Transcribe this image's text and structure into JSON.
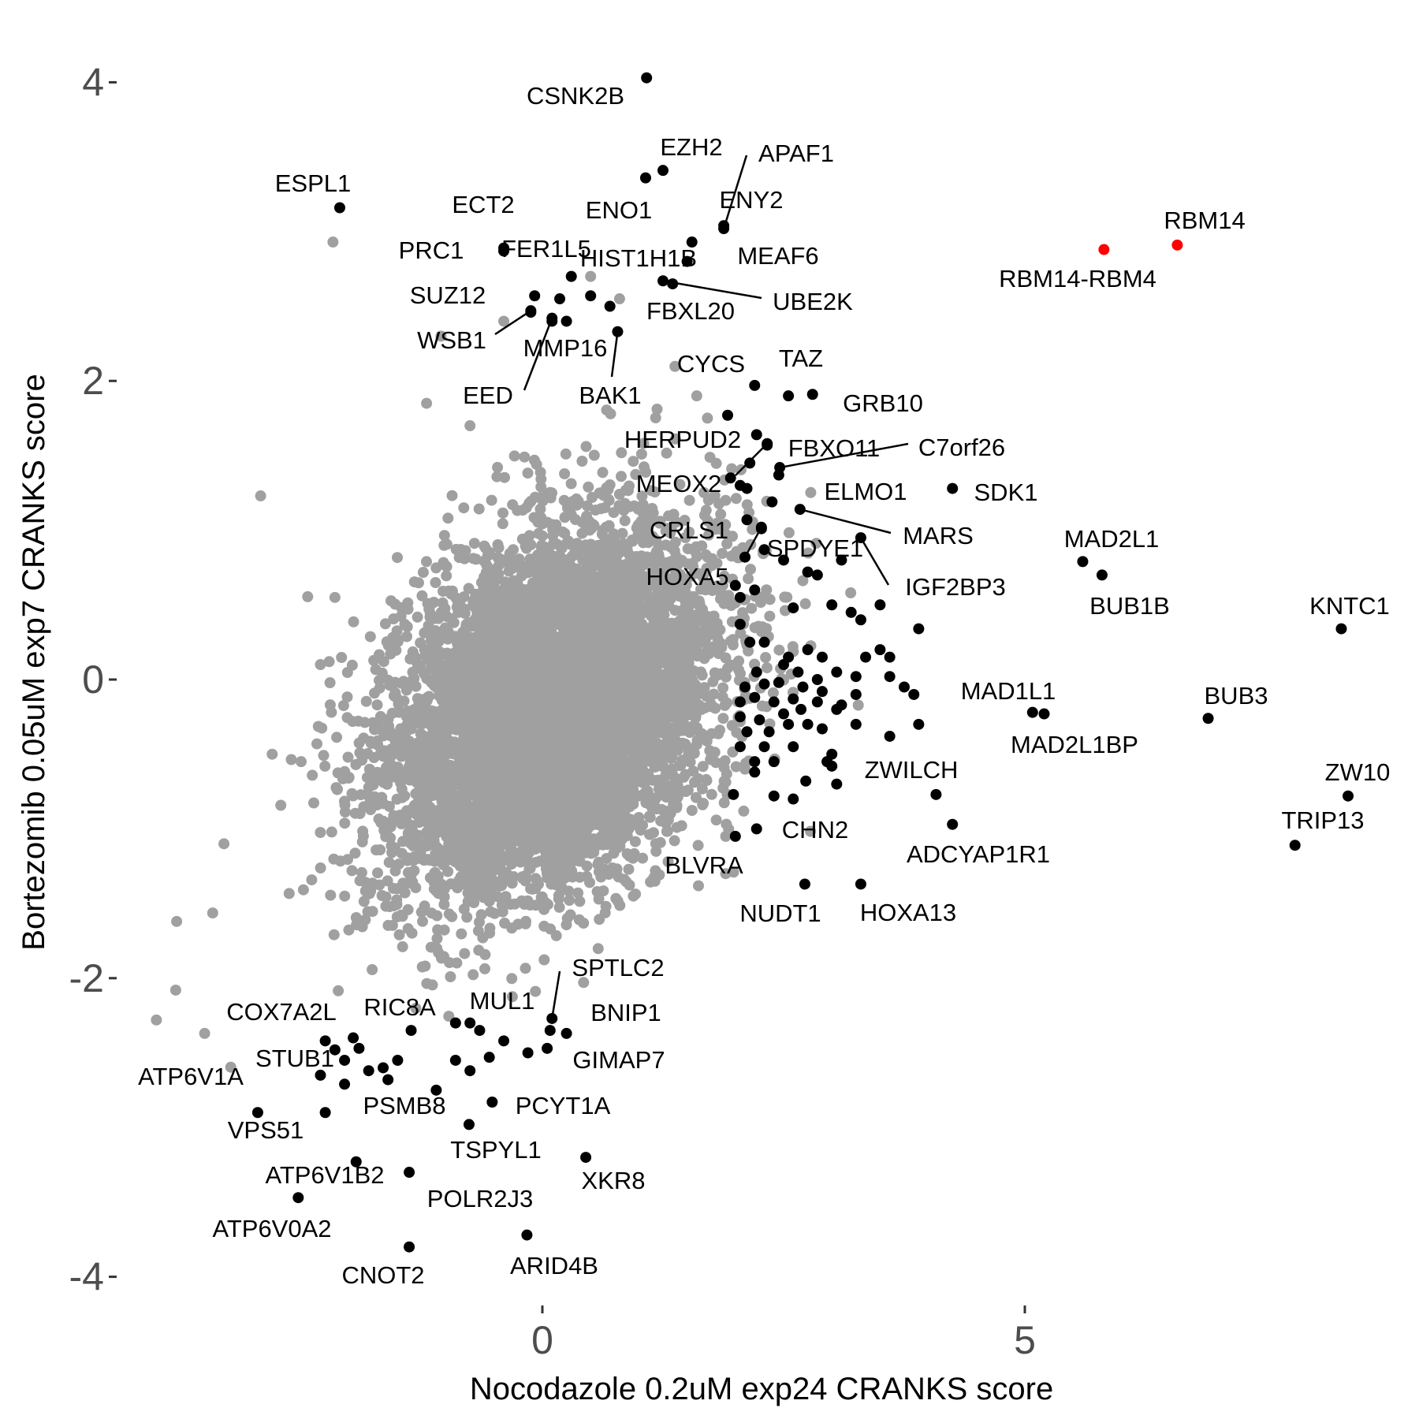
{
  "chart_data": {
    "type": "scatter",
    "title": "",
    "xlabel": "Nocodazole 0.2uM exp24 CRANKS score",
    "ylabel": "Bortezomib 0.05uM exp7 CRANKS score",
    "xlim": [
      -4.5,
      8.8
    ],
    "ylim": [
      -4.2,
      4.5
    ],
    "x_ticks": [
      0,
      5
    ],
    "y_ticks": [
      -4,
      -2,
      0,
      2,
      4
    ],
    "grid": false,
    "legend": "none",
    "colors": {
      "background": "#ffffff",
      "neutral": "#a0a0a0",
      "labeled": "#000000",
      "highlight": "#ff0000"
    },
    "background_cloud": {
      "color": "#a0a0a0",
      "center": [
        0.1,
        -0.2
      ],
      "sd": [
        0.85,
        0.6
      ],
      "correlation": 0.35,
      "count": 7000,
      "outliers": [
        [
          -2.17,
          2.93
        ],
        [
          -2.92,
          1.23
        ],
        [
          -3.79,
          -1.62
        ],
        [
          -3.8,
          -2.08
        ],
        [
          -4.0,
          -2.28
        ],
        [
          -3.5,
          -2.37
        ],
        [
          -2.8,
          -0.5
        ],
        [
          -3.3,
          -1.1
        ],
        [
          -1.2,
          1.85
        ],
        [
          -0.75,
          1.7
        ],
        [
          -1.05,
          2.3
        ],
        [
          -0.4,
          2.4
        ],
        [
          0.5,
          2.7
        ],
        [
          0.8,
          2.55
        ],
        [
          1.6,
          1.9
        ],
        [
          1.9,
          1.2
        ],
        [
          2.0,
          0.1
        ],
        [
          2.1,
          -0.6
        ],
        [
          1.9,
          -1.3
        ],
        [
          1.9,
          -1.05
        ],
        [
          -2.15,
          0.55
        ],
        [
          -2.3,
          0.1
        ],
        [
          -2.5,
          -0.55
        ]
      ]
    },
    "labeled_points": [
      {
        "label": "CSNK2B",
        "x": 1.08,
        "y": 4.03,
        "color": "#000000"
      },
      {
        "label": "EZH2",
        "x": 1.25,
        "y": 3.41,
        "color": "#000000"
      },
      {
        "label": "APAF1",
        "x": 1.88,
        "y": 3.02,
        "color": "#000000"
      },
      {
        "label": "ENY2",
        "x": 1.88,
        "y": 3.04,
        "color": "#000000"
      },
      {
        "label": "ENO1",
        "x": 1.07,
        "y": 3.36,
        "color": "#000000"
      },
      {
        "label": "ESPL1",
        "x": -2.1,
        "y": 3.16,
        "color": "#000000"
      },
      {
        "label": "ECT2",
        "x": -0.4,
        "y": 2.89,
        "color": "#000000"
      },
      {
        "label": "MEAF6",
        "x": 1.55,
        "y": 2.93,
        "color": "#000000"
      },
      {
        "label": "PRC1",
        "x": -0.4,
        "y": 2.87,
        "color": "#000000"
      },
      {
        "label": "FER1L5",
        "x": 0.3,
        "y": 2.7,
        "color": "#000000"
      },
      {
        "label": "HIST1H1B",
        "x": 0.5,
        "y": 2.57,
        "color": "#000000"
      },
      {
        "label": "UBE2K",
        "x": 1.25,
        "y": 2.67,
        "color": "#000000"
      },
      {
        "label": "FBXL20",
        "x": 0.7,
        "y": 2.5,
        "color": "#000000"
      },
      {
        "label": "SUZ12",
        "x": -0.12,
        "y": 2.46,
        "color": "#000000"
      },
      {
        "label": "WSB1",
        "x": -0.12,
        "y": 2.47,
        "color": "#000000"
      },
      {
        "label": "MMP16",
        "x": 0.1,
        "y": 2.4,
        "color": "#000000"
      },
      {
        "label": "EED",
        "x": 0.1,
        "y": 2.42,
        "color": "#000000"
      },
      {
        "label": "BAK1",
        "x": 0.78,
        "y": 2.33,
        "color": "#000000"
      },
      {
        "label": "RBM14",
        "x": 6.58,
        "y": 2.91,
        "color": "#ff0000"
      },
      {
        "label": "RBM14-RBM4",
        "x": 5.82,
        "y": 2.88,
        "color": "#ff0000"
      },
      {
        "label": "CYCS",
        "x": 2.2,
        "y": 1.97,
        "color": "#000000"
      },
      {
        "label": "TAZ",
        "x": 2.55,
        "y": 1.9,
        "color": "#000000"
      },
      {
        "label": "GRB10",
        "x": 2.8,
        "y": 1.91,
        "color": "#000000"
      },
      {
        "label": "HERPUD2",
        "x": 2.22,
        "y": 1.64,
        "color": "#000000"
      },
      {
        "label": "FBXO11",
        "x": 2.33,
        "y": 1.57,
        "color": "#000000"
      },
      {
        "label": "C7orf26",
        "x": 2.46,
        "y": 1.42,
        "color": "#000000"
      },
      {
        "label": "MEOX2",
        "x": 2.33,
        "y": 1.58,
        "color": "#000000"
      },
      {
        "label": "SDK1",
        "x": 4.25,
        "y": 1.28,
        "color": "#000000"
      },
      {
        "label": "ELMO1",
        "x": 2.38,
        "y": 1.19,
        "color": "#000000"
      },
      {
        "label": "MARS",
        "x": 2.67,
        "y": 1.14,
        "color": "#000000"
      },
      {
        "label": "CRLS1",
        "x": 2.12,
        "y": 1.28,
        "color": "#000000"
      },
      {
        "label": "SPDYE1",
        "x": 2.27,
        "y": 1.01,
        "color": "#000000"
      },
      {
        "label": "HOXA5",
        "x": 2.27,
        "y": 1.02,
        "color": "#000000"
      },
      {
        "label": "IGF2BP3",
        "x": 3.3,
        "y": 0.95,
        "color": "#000000"
      },
      {
        "label": "MAD2L1",
        "x": 5.6,
        "y": 0.79,
        "color": "#000000"
      },
      {
        "label": "BUB1B",
        "x": 5.8,
        "y": 0.7,
        "color": "#000000"
      },
      {
        "label": "KNTC1",
        "x": 8.28,
        "y": 0.34,
        "color": "#000000"
      },
      {
        "label": "MAD1L1",
        "x": 5.08,
        "y": -0.22,
        "color": "#000000"
      },
      {
        "label": "MAD2L1BP",
        "x": 5.2,
        "y": -0.23,
        "color": "#000000"
      },
      {
        "label": "BUB3",
        "x": 6.9,
        "y": -0.26,
        "color": "#000000"
      },
      {
        "label": "ZWILCH",
        "x": 4.08,
        "y": -0.77,
        "color": "#000000"
      },
      {
        "label": "ZW10",
        "x": 8.35,
        "y": -0.78,
        "color": "#000000"
      },
      {
        "label": "ADCYAP1R1",
        "x": 4.25,
        "y": -0.97,
        "color": "#000000"
      },
      {
        "label": "CHN2",
        "x": 2.22,
        "y": -1.0,
        "color": "#000000"
      },
      {
        "label": "TRIP13",
        "x": 7.8,
        "y": -1.11,
        "color": "#000000"
      },
      {
        "label": "BLVRA",
        "x": 2.0,
        "y": -1.05,
        "color": "#000000"
      },
      {
        "label": "NUDT1",
        "x": 2.72,
        "y": -1.37,
        "color": "#000000"
      },
      {
        "label": "HOXA13",
        "x": 3.3,
        "y": -1.37,
        "color": "#000000"
      },
      {
        "label": "SPTLC2",
        "x": 0.1,
        "y": -2.27,
        "color": "#000000"
      },
      {
        "label": "MUL1",
        "x": -0.9,
        "y": -2.3,
        "color": "#000000"
      },
      {
        "label": "BNIP1",
        "x": 0.08,
        "y": -2.35,
        "color": "#000000"
      },
      {
        "label": "RIC8A",
        "x": -1.36,
        "y": -2.35,
        "color": "#000000"
      },
      {
        "label": "COX7A2L",
        "x": -1.96,
        "y": -2.4,
        "color": "#000000"
      },
      {
        "label": "GIMAP7",
        "x": 0.25,
        "y": -2.37,
        "color": "#000000"
      },
      {
        "label": "STUB1",
        "x": -1.9,
        "y": -2.47,
        "color": "#000000"
      },
      {
        "label": "ATP6V1A",
        "x": -2.95,
        "y": -2.9,
        "color": "#000000"
      },
      {
        "label": "PSMB8",
        "x": -2.05,
        "y": -2.71,
        "color": "#000000"
      },
      {
        "label": "PCYT1A",
        "x": -0.52,
        "y": -2.83,
        "color": "#000000"
      },
      {
        "label": "VPS51",
        "x": -2.25,
        "y": -2.9,
        "color": "#000000"
      },
      {
        "label": "TSPYL1",
        "x": -0.76,
        "y": -2.98,
        "color": "#000000"
      },
      {
        "label": "XKR8",
        "x": 0.45,
        "y": -3.2,
        "color": "#000000"
      },
      {
        "label": "ATP6V1B2",
        "x": -1.93,
        "y": -3.23,
        "color": "#000000"
      },
      {
        "label": "POLR2J3",
        "x": -1.38,
        "y": -3.3,
        "color": "#000000"
      },
      {
        "label": "ATP6V0A2",
        "x": -2.53,
        "y": -3.47,
        "color": "#000000"
      },
      {
        "label": "CNOT2",
        "x": -1.38,
        "y": -3.8,
        "color": "#000000"
      },
      {
        "label": "ARID4B",
        "x": -0.16,
        "y": -3.72,
        "color": "#000000"
      }
    ],
    "unlabeled_points": [
      [
        -0.08,
        2.57
      ],
      [
        0.18,
        2.55
      ],
      [
        0.25,
        2.4
      ],
      [
        1.5,
        2.8
      ],
      [
        1.35,
        2.65
      ],
      [
        1.92,
        1.77
      ],
      [
        2.15,
        1.45
      ],
      [
        2.45,
        1.37
      ],
      [
        2.05,
        1.3
      ],
      [
        1.95,
        1.35
      ],
      [
        2.12,
        1.07
      ],
      [
        2.3,
        0.87
      ],
      [
        2.1,
        0.82
      ],
      [
        2.0,
        0.63
      ],
      [
        2.05,
        0.55
      ],
      [
        2.2,
        0.6
      ],
      [
        2.5,
        0.8
      ],
      [
        2.75,
        0.72
      ],
      [
        2.85,
        0.7
      ],
      [
        3.1,
        0.8
      ],
      [
        3.0,
        0.5
      ],
      [
        2.6,
        0.48
      ],
      [
        3.2,
        0.45
      ],
      [
        3.5,
        0.5
      ],
      [
        3.3,
        0.4
      ],
      [
        3.9,
        0.34
      ],
      [
        2.05,
        0.37
      ],
      [
        2.15,
        0.25
      ],
      [
        2.3,
        0.25
      ],
      [
        2.55,
        0.15
      ],
      [
        2.75,
        0.2
      ],
      [
        2.9,
        0.15
      ],
      [
        3.35,
        0.15
      ],
      [
        3.5,
        0.2
      ],
      [
        3.6,
        0.15
      ],
      [
        2.22,
        0.05
      ],
      [
        2.5,
        0.1
      ],
      [
        2.65,
        0.05
      ],
      [
        2.85,
        0.0
      ],
      [
        3.05,
        0.05
      ],
      [
        3.25,
        0.02
      ],
      [
        3.6,
        0.02
      ],
      [
        2.1,
        -0.05
      ],
      [
        2.3,
        -0.03
      ],
      [
        2.45,
        -0.02
      ],
      [
        2.7,
        -0.05
      ],
      [
        2.9,
        -0.08
      ],
      [
        3.25,
        -0.1
      ],
      [
        3.75,
        -0.05
      ],
      [
        2.05,
        -0.15
      ],
      [
        2.2,
        -0.12
      ],
      [
        2.4,
        -0.15
      ],
      [
        2.6,
        -0.13
      ],
      [
        2.85,
        -0.15
      ],
      [
        3.1,
        -0.17
      ],
      [
        3.85,
        -0.1
      ],
      [
        2.05,
        -0.25
      ],
      [
        2.25,
        -0.27
      ],
      [
        2.5,
        -0.23
      ],
      [
        2.68,
        -0.2
      ],
      [
        3.05,
        -0.2
      ],
      [
        3.25,
        -0.3
      ],
      [
        2.12,
        -0.35
      ],
      [
        2.35,
        -0.35
      ],
      [
        2.55,
        -0.3
      ],
      [
        2.75,
        -0.3
      ],
      [
        2.9,
        -0.33
      ],
      [
        3.9,
        -0.3
      ],
      [
        2.05,
        -0.45
      ],
      [
        2.3,
        -0.45
      ],
      [
        2.6,
        -0.45
      ],
      [
        3.0,
        -0.5
      ],
      [
        3.6,
        -0.38
      ],
      [
        2.2,
        -0.55
      ],
      [
        2.4,
        -0.55
      ],
      [
        2.95,
        -0.55
      ],
      [
        3.0,
        -0.58
      ],
      [
        2.2,
        -0.62
      ],
      [
        2.73,
        -0.68
      ],
      [
        3.05,
        -0.7
      ],
      [
        1.98,
        -0.77
      ],
      [
        2.4,
        -0.78
      ],
      [
        2.6,
        -0.8
      ],
      [
        -2.25,
        -2.42
      ],
      [
        -2.15,
        -2.48
      ],
      [
        -2.05,
        -2.55
      ],
      [
        -1.8,
        -2.62
      ],
      [
        -1.6,
        -2.68
      ],
      [
        -1.5,
        -2.55
      ],
      [
        -1.65,
        -2.6
      ],
      [
        -0.9,
        -2.55
      ],
      [
        -0.75,
        -2.62
      ],
      [
        -0.55,
        -2.53
      ],
      [
        -0.15,
        -2.5
      ],
      [
        0.05,
        -2.47
      ],
      [
        -0.75,
        -2.3
      ],
      [
        -0.65,
        -2.35
      ],
      [
        -0.4,
        -2.42
      ],
      [
        -2.3,
        -2.65
      ],
      [
        -1.1,
        -2.75
      ]
    ]
  }
}
